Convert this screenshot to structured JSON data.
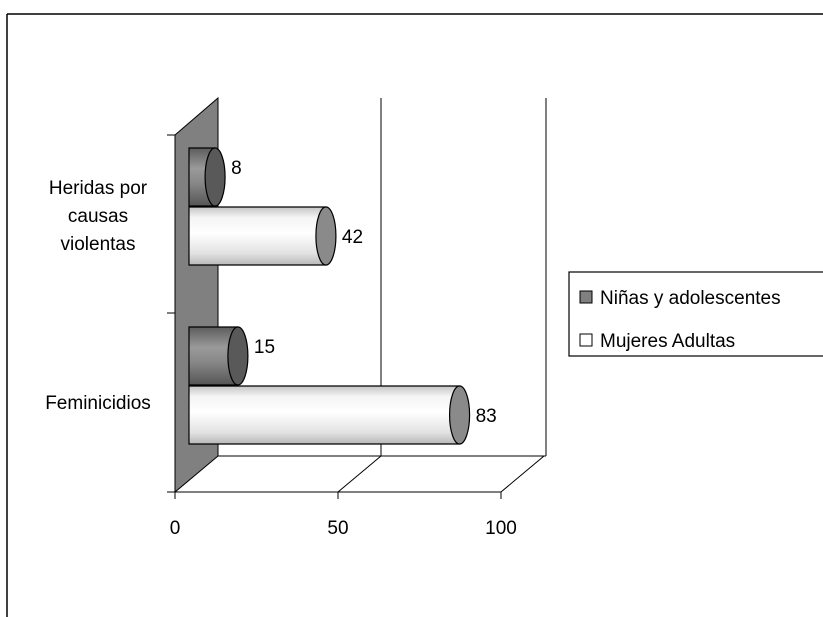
{
  "chart_data": {
    "type": "bar",
    "orientation": "horizontal",
    "style": "3d-cylinder",
    "categories": [
      "Feminicidios",
      "Heridas por causas violentas"
    ],
    "category_label_lines": [
      [
        "Feminicidios"
      ],
      [
        "Heridas por",
        "causas",
        "violentas"
      ]
    ],
    "series": [
      {
        "name": "Niñas y adolescentes",
        "values": [
          15,
          8
        ],
        "color": "#808080"
      },
      {
        "name": "Mujeres Adultas",
        "values": [
          83,
          42
        ],
        "color": "#ffffff"
      }
    ],
    "x_ticks": [
      0,
      50,
      100
    ],
    "xlim": [
      0,
      100
    ],
    "grid": true,
    "legend_position": "right",
    "colors": {
      "wall": "#808080",
      "frame": "#000000",
      "dark_end": "#595959"
    }
  }
}
